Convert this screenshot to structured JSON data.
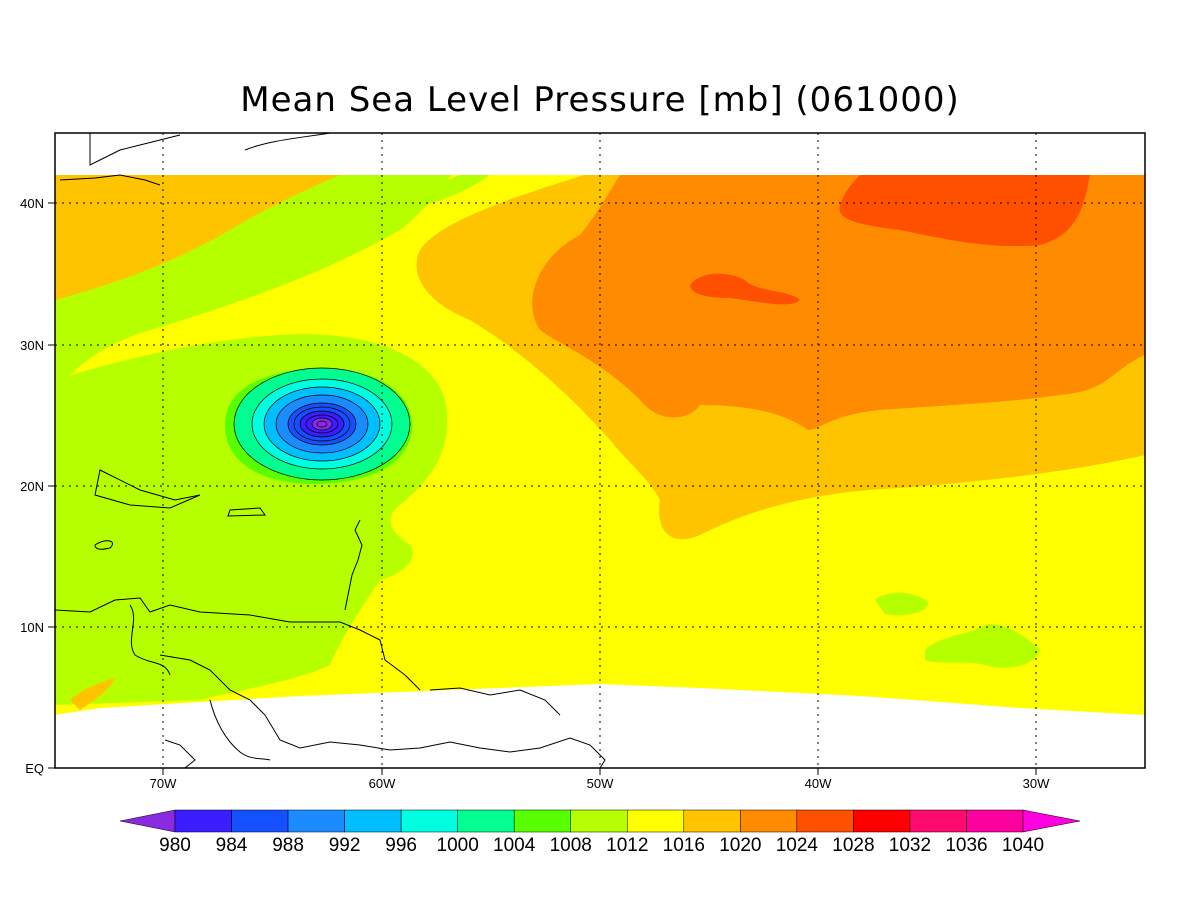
{
  "title": "Mean Sea Level Pressure [mb] (061000)",
  "map": {
    "lat_labels": [
      "40N",
      "30N",
      "20N",
      "10N",
      "EQ"
    ],
    "lon_labels": [
      "70W",
      "60W",
      "50W",
      "40W",
      "30W"
    ]
  },
  "colorbar": {
    "values": [
      "980",
      "984",
      "988",
      "992",
      "996",
      "1000",
      "1004",
      "1008",
      "1012",
      "1016",
      "1020",
      "1024",
      "1028",
      "1032",
      "1036",
      "1040"
    ],
    "colors": [
      "#8a2be2",
      "#3b1dff",
      "#1550ff",
      "#1a8cff",
      "#00bfff",
      "#00ffe0",
      "#00ff90",
      "#57ff00",
      "#b6ff00",
      "#ffff00",
      "#ffc400",
      "#ff8c00",
      "#ff5000",
      "#ff0000",
      "#ff0a6e",
      "#ff00a0",
      "#ff00e0"
    ]
  },
  "fill_colors": {
    "c1004": "#00ff90",
    "c1008": "#57ff00",
    "c1012": "#b6ff00",
    "c1016": "#ffff00",
    "c1020": "#ffc400",
    "c1024": "#ff8c00",
    "c1028": "#ff5000",
    "low_core": "#3b1dff"
  }
}
